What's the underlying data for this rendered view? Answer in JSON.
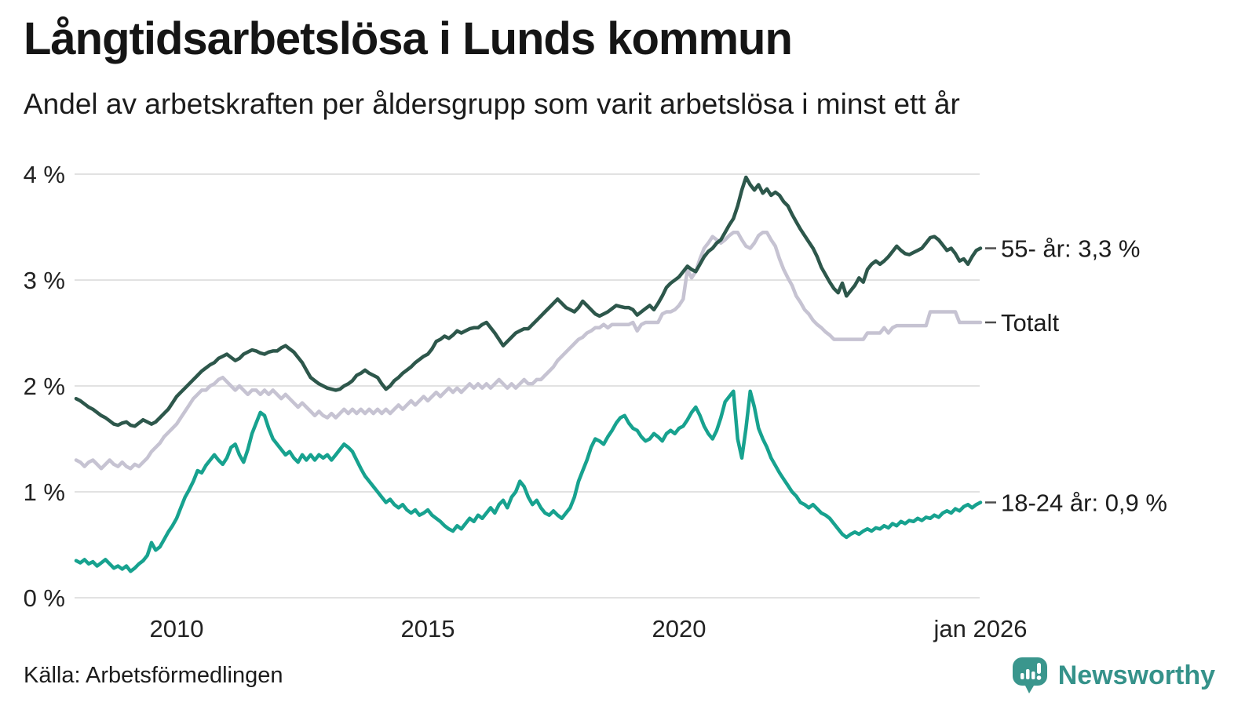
{
  "header": {
    "title": "Långtidsarbetslösa i Lunds kommun",
    "subtitle": "Andel av arbetskraften per åldersgrupp som varit arbetslösa i minst ett år"
  },
  "footer": {
    "source": "Källa: Arbetsförmedlingen",
    "brand": "Newsworthy"
  },
  "colors": {
    "series_55": "#2d574b",
    "series_total": "#c6c3d2",
    "series_18_24": "#17a28f",
    "grid": "#e2e2e2",
    "axis_text": "#222222",
    "label_dash": "#4d4d4d",
    "brand_teal": "#3a968d"
  },
  "chart_data": {
    "type": "line",
    "title": "Långtidsarbetslösa i Lunds kommun",
    "subtitle": "Andel av arbetskraften per åldersgrupp som varit arbetslösa i minst ett år",
    "unit": "%",
    "xlabel": "",
    "ylabel": "",
    "grid": true,
    "legend_position": "right-end-labels",
    "ylim": [
      0,
      4.2
    ],
    "x_range": [
      "2008-01",
      "2026-01"
    ],
    "x_resolution": "monthly",
    "x_ticks": [
      {
        "year": 2010.0,
        "label": "2010"
      },
      {
        "year": 2015.0,
        "label": "2015"
      },
      {
        "year": 2020.0,
        "label": "2020"
      },
      {
        "year": 2026.0,
        "label": "jan 2026"
      }
    ],
    "y_ticks": [
      {
        "value": 0,
        "label": "0 %"
      },
      {
        "value": 1,
        "label": "1 %"
      },
      {
        "value": 2,
        "label": "2 %"
      },
      {
        "value": 3,
        "label": "3 %"
      },
      {
        "value": 4,
        "label": "4 %"
      }
    ],
    "series": [
      {
        "name": "Totalt",
        "end_label": "Totalt",
        "end_value": 2.6,
        "color": "#c6c3d2",
        "values": [
          1.3,
          1.28,
          1.24,
          1.28,
          1.3,
          1.26,
          1.22,
          1.26,
          1.3,
          1.26,
          1.24,
          1.28,
          1.24,
          1.22,
          1.26,
          1.24,
          1.28,
          1.32,
          1.38,
          1.42,
          1.46,
          1.52,
          1.56,
          1.6,
          1.64,
          1.7,
          1.76,
          1.82,
          1.88,
          1.92,
          1.96,
          1.96,
          2.0,
          2.02,
          2.06,
          2.08,
          2.04,
          2.0,
          1.96,
          2.0,
          1.96,
          1.92,
          1.96,
          1.96,
          1.92,
          1.96,
          1.92,
          1.96,
          1.92,
          1.88,
          1.92,
          1.88,
          1.84,
          1.8,
          1.84,
          1.8,
          1.76,
          1.72,
          1.76,
          1.72,
          1.7,
          1.74,
          1.7,
          1.74,
          1.78,
          1.74,
          1.78,
          1.74,
          1.78,
          1.74,
          1.78,
          1.74,
          1.78,
          1.74,
          1.78,
          1.74,
          1.78,
          1.82,
          1.78,
          1.82,
          1.86,
          1.82,
          1.86,
          1.9,
          1.86,
          1.9,
          1.94,
          1.9,
          1.94,
          1.98,
          1.94,
          1.98,
          1.94,
          1.98,
          2.02,
          1.98,
          2.02,
          1.98,
          2.02,
          1.98,
          2.02,
          2.06,
          2.02,
          1.98,
          2.02,
          1.98,
          2.02,
          2.06,
          2.02,
          2.02,
          2.06,
          2.06,
          2.1,
          2.14,
          2.18,
          2.24,
          2.28,
          2.32,
          2.36,
          2.4,
          2.44,
          2.46,
          2.5,
          2.52,
          2.55,
          2.55,
          2.58,
          2.55,
          2.58,
          2.58,
          2.58,
          2.58,
          2.58,
          2.6,
          2.52,
          2.58,
          2.6,
          2.6,
          2.6,
          2.6,
          2.68,
          2.7,
          2.7,
          2.72,
          2.76,
          2.82,
          3.1,
          3.02,
          3.08,
          3.2,
          3.3,
          3.35,
          3.41,
          3.38,
          3.35,
          3.38,
          3.42,
          3.45,
          3.45,
          3.38,
          3.32,
          3.3,
          3.35,
          3.42,
          3.45,
          3.45,
          3.38,
          3.32,
          3.2,
          3.1,
          3.02,
          2.95,
          2.85,
          2.79,
          2.72,
          2.68,
          2.62,
          2.58,
          2.55,
          2.51,
          2.48,
          2.44,
          2.44,
          2.44,
          2.44,
          2.44,
          2.44,
          2.44,
          2.44,
          2.5,
          2.5,
          2.5,
          2.5,
          2.55,
          2.5,
          2.55,
          2.57,
          2.57,
          2.57,
          2.57,
          2.57,
          2.57,
          2.57,
          2.57,
          2.7,
          2.7,
          2.7,
          2.7,
          2.7,
          2.7,
          2.7,
          2.6,
          2.6,
          2.6,
          2.6,
          2.6,
          2.6
        ]
      },
      {
        "name": "18-24 år",
        "end_label": "18-24 år: 0,9 %",
        "end_value": 0.9,
        "color": "#17a28f",
        "values": [
          0.35,
          0.33,
          0.36,
          0.32,
          0.34,
          0.3,
          0.33,
          0.36,
          0.32,
          0.28,
          0.3,
          0.27,
          0.3,
          0.25,
          0.28,
          0.32,
          0.35,
          0.4,
          0.52,
          0.45,
          0.48,
          0.55,
          0.62,
          0.68,
          0.75,
          0.85,
          0.95,
          1.02,
          1.1,
          1.2,
          1.18,
          1.25,
          1.3,
          1.35,
          1.3,
          1.26,
          1.32,
          1.42,
          1.45,
          1.35,
          1.28,
          1.4,
          1.55,
          1.65,
          1.75,
          1.72,
          1.6,
          1.5,
          1.45,
          1.4,
          1.35,
          1.38,
          1.32,
          1.28,
          1.35,
          1.3,
          1.35,
          1.3,
          1.35,
          1.32,
          1.35,
          1.3,
          1.35,
          1.4,
          1.45,
          1.42,
          1.38,
          1.3,
          1.22,
          1.15,
          1.1,
          1.05,
          1.0,
          0.95,
          0.9,
          0.93,
          0.88,
          0.85,
          0.88,
          0.83,
          0.8,
          0.83,
          0.78,
          0.8,
          0.83,
          0.78,
          0.75,
          0.72,
          0.68,
          0.65,
          0.63,
          0.68,
          0.65,
          0.7,
          0.75,
          0.72,
          0.78,
          0.75,
          0.8,
          0.85,
          0.8,
          0.88,
          0.92,
          0.85,
          0.95,
          1.0,
          1.1,
          1.05,
          0.95,
          0.88,
          0.92,
          0.85,
          0.8,
          0.78,
          0.82,
          0.78,
          0.75,
          0.8,
          0.85,
          0.95,
          1.1,
          1.2,
          1.3,
          1.42,
          1.5,
          1.48,
          1.45,
          1.52,
          1.58,
          1.65,
          1.7,
          1.72,
          1.65,
          1.6,
          1.58,
          1.52,
          1.48,
          1.5,
          1.55,
          1.52,
          1.48,
          1.55,
          1.58,
          1.55,
          1.6,
          1.62,
          1.68,
          1.75,
          1.8,
          1.72,
          1.62,
          1.55,
          1.5,
          1.58,
          1.7,
          1.85,
          1.9,
          1.95,
          1.5,
          1.32,
          1.6,
          1.95,
          1.8,
          1.6,
          1.5,
          1.42,
          1.32,
          1.25,
          1.18,
          1.12,
          1.06,
          1.0,
          0.96,
          0.9,
          0.88,
          0.85,
          0.88,
          0.84,
          0.8,
          0.78,
          0.75,
          0.7,
          0.65,
          0.6,
          0.57,
          0.6,
          0.62,
          0.6,
          0.63,
          0.65,
          0.63,
          0.66,
          0.65,
          0.68,
          0.66,
          0.7,
          0.68,
          0.72,
          0.7,
          0.73,
          0.72,
          0.75,
          0.73,
          0.76,
          0.75,
          0.78,
          0.76,
          0.8,
          0.82,
          0.8,
          0.84,
          0.82,
          0.86,
          0.88,
          0.85,
          0.88,
          0.9
        ]
      },
      {
        "name": "55- år",
        "end_label": "55- år: 3,3 %",
        "end_value": 3.3,
        "color": "#2d574b",
        "values": [
          1.88,
          1.86,
          1.83,
          1.8,
          1.78,
          1.75,
          1.72,
          1.7,
          1.67,
          1.64,
          1.63,
          1.65,
          1.66,
          1.63,
          1.62,
          1.65,
          1.68,
          1.66,
          1.64,
          1.66,
          1.7,
          1.74,
          1.78,
          1.84,
          1.9,
          1.94,
          1.98,
          2.02,
          2.06,
          2.1,
          2.14,
          2.17,
          2.2,
          2.22,
          2.26,
          2.28,
          2.3,
          2.27,
          2.24,
          2.26,
          2.3,
          2.32,
          2.34,
          2.33,
          2.31,
          2.3,
          2.32,
          2.33,
          2.33,
          2.36,
          2.38,
          2.35,
          2.32,
          2.27,
          2.22,
          2.15,
          2.08,
          2.05,
          2.02,
          2.0,
          1.98,
          1.97,
          1.96,
          1.97,
          2.0,
          2.02,
          2.05,
          2.1,
          2.12,
          2.15,
          2.12,
          2.1,
          2.08,
          2.02,
          1.97,
          2.0,
          2.05,
          2.08,
          2.12,
          2.15,
          2.18,
          2.22,
          2.25,
          2.28,
          2.3,
          2.35,
          2.42,
          2.44,
          2.47,
          2.45,
          2.48,
          2.52,
          2.5,
          2.52,
          2.54,
          2.55,
          2.55,
          2.58,
          2.6,
          2.55,
          2.5,
          2.44,
          2.38,
          2.42,
          2.46,
          2.5,
          2.52,
          2.54,
          2.54,
          2.58,
          2.62,
          2.66,
          2.7,
          2.74,
          2.78,
          2.82,
          2.78,
          2.74,
          2.72,
          2.7,
          2.74,
          2.8,
          2.76,
          2.72,
          2.68,
          2.66,
          2.68,
          2.7,
          2.73,
          2.76,
          2.75,
          2.74,
          2.74,
          2.72,
          2.67,
          2.7,
          2.73,
          2.76,
          2.72,
          2.78,
          2.85,
          2.93,
          2.97,
          3.0,
          3.03,
          3.08,
          3.13,
          3.1,
          3.08,
          3.15,
          3.22,
          3.27,
          3.3,
          3.35,
          3.38,
          3.45,
          3.52,
          3.58,
          3.7,
          3.85,
          3.97,
          3.9,
          3.85,
          3.9,
          3.82,
          3.86,
          3.8,
          3.83,
          3.8,
          3.74,
          3.7,
          3.62,
          3.55,
          3.48,
          3.42,
          3.36,
          3.3,
          3.22,
          3.12,
          3.05,
          2.98,
          2.92,
          2.88,
          2.97,
          2.85,
          2.9,
          2.95,
          3.02,
          2.98,
          3.1,
          3.15,
          3.18,
          3.15,
          3.18,
          3.22,
          3.27,
          3.32,
          3.28,
          3.25,
          3.24,
          3.26,
          3.28,
          3.3,
          3.35,
          3.4,
          3.41,
          3.38,
          3.33,
          3.28,
          3.3,
          3.25,
          3.18,
          3.2,
          3.15,
          3.22,
          3.28,
          3.3
        ]
      }
    ]
  }
}
